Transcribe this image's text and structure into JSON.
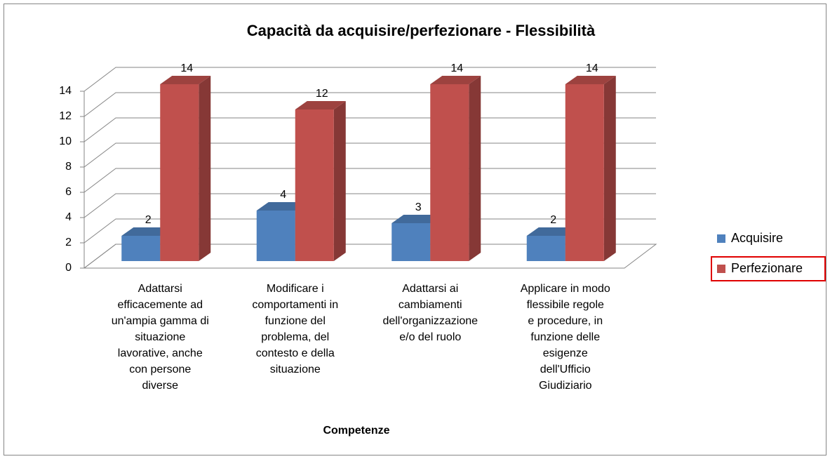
{
  "chart_data": {
    "type": "bar3d",
    "title": "Capacità da acquisire/perfezionare - Flessibilità",
    "x_label": "Competenze",
    "categories": [
      "Adattarsi efficacemente ad un'ampia gamma di situazione lavorative, anche con persone diverse",
      "Modificare i comportamenti in funzione del problema, del contesto e della situazione",
      "Adattarsi ai cambiamenti dell'organizzazione e/o del ruolo",
      "Applicare in modo flessibile regole e procedure, in funzione delle esigenze dell'Ufficio Giudiziario"
    ],
    "series": [
      {
        "name": "Acquisire",
        "color": "#4f81bd",
        "values": [
          2,
          4,
          3,
          2
        ]
      },
      {
        "name": "Perfezionare",
        "color": "#c0504d",
        "values": [
          14,
          12,
          14,
          14
        ]
      }
    ],
    "ylim": [
      0,
      14
    ],
    "yticks": [
      0,
      2,
      4,
      6,
      8,
      10,
      12,
      14
    ],
    "grid": true,
    "legend": "right"
  }
}
